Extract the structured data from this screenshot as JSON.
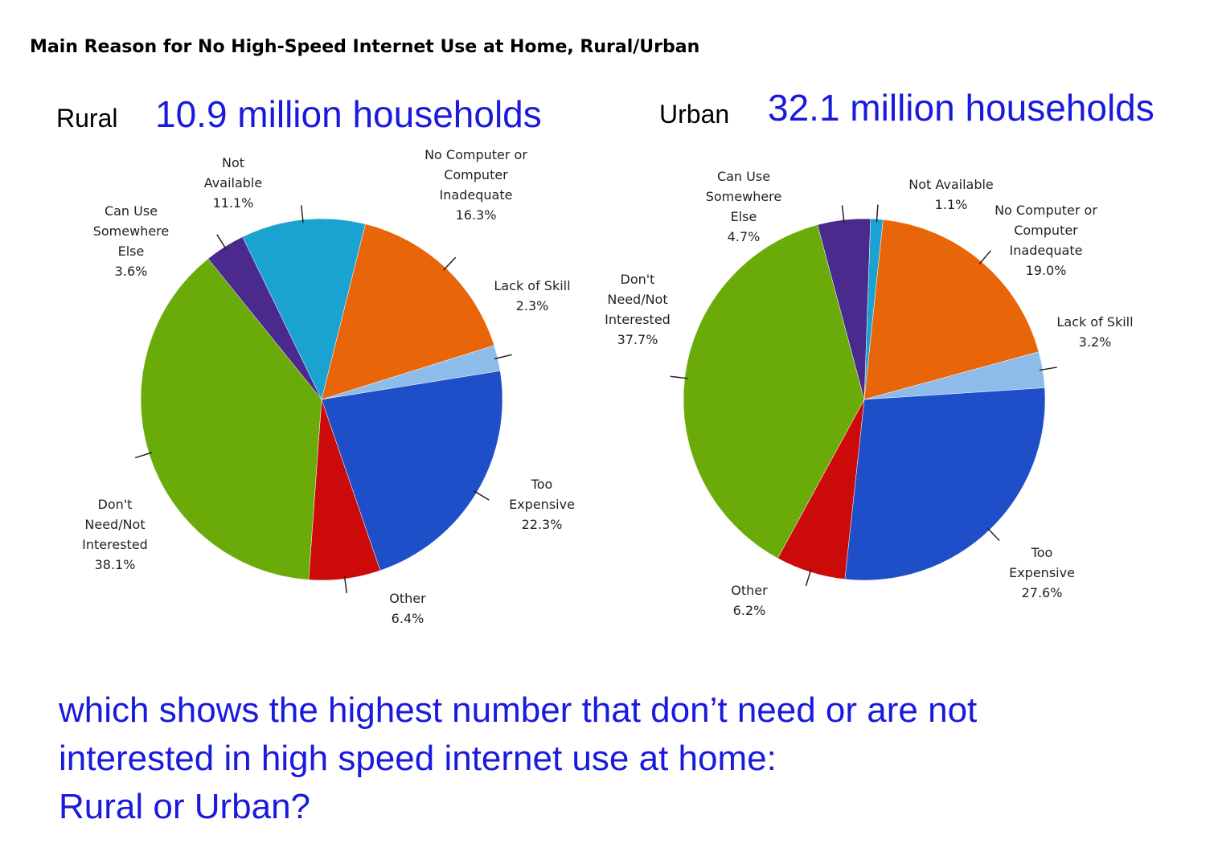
{
  "title": "Main Reason for No High-Speed Internet Use at Home, Rural/Urban",
  "question": [
    "which shows the highest number that don’t need or are not",
    "interested in high speed internet use at home:",
    "Rural or Urban?"
  ],
  "chart_data": [
    {
      "type": "pie",
      "label": "Rural",
      "subtitle": "10.9 million households",
      "categories": [
        "No Computer or Computer Inadequate",
        "Lack of Skill",
        "Too Expensive",
        "Other",
        "Don't Need/Not Interested",
        "Can Use Somewhere Else",
        "Not Available"
      ],
      "values": [
        16.3,
        2.3,
        22.3,
        6.4,
        38.1,
        3.6,
        11.1
      ],
      "value_labels": [
        "16.3%",
        "2.3%",
        "22.3%",
        "6.4%",
        "38.1%",
        "3.6%",
        "11.1%"
      ],
      "colors": [
        "#e8650a",
        "#8dbbea",
        "#1f4fc8",
        "#cc0a0a",
        "#6aab0a",
        "#4b2a8e",
        "#1aa3d1"
      ]
    },
    {
      "type": "pie",
      "label": "Urban",
      "subtitle": "32.1 million households",
      "categories": [
        "Not Available",
        "No Computer or Computer Inadequate",
        "Lack of Skill",
        "Too Expensive",
        "Other",
        "Don't Need/Not Interested",
        "Can Use Somewhere Else"
      ],
      "values": [
        1.1,
        19.0,
        3.2,
        27.6,
        6.2,
        37.7,
        4.7
      ],
      "value_labels": [
        "1.1%",
        "19.0%",
        "3.2%",
        "27.6%",
        "6.2%",
        "37.7%",
        "4.7%"
      ],
      "colors": [
        "#1aa3d1",
        "#e8650a",
        "#8dbbea",
        "#1f4fc8",
        "#cc0a0a",
        "#6aab0a",
        "#4b2a8e"
      ]
    }
  ]
}
